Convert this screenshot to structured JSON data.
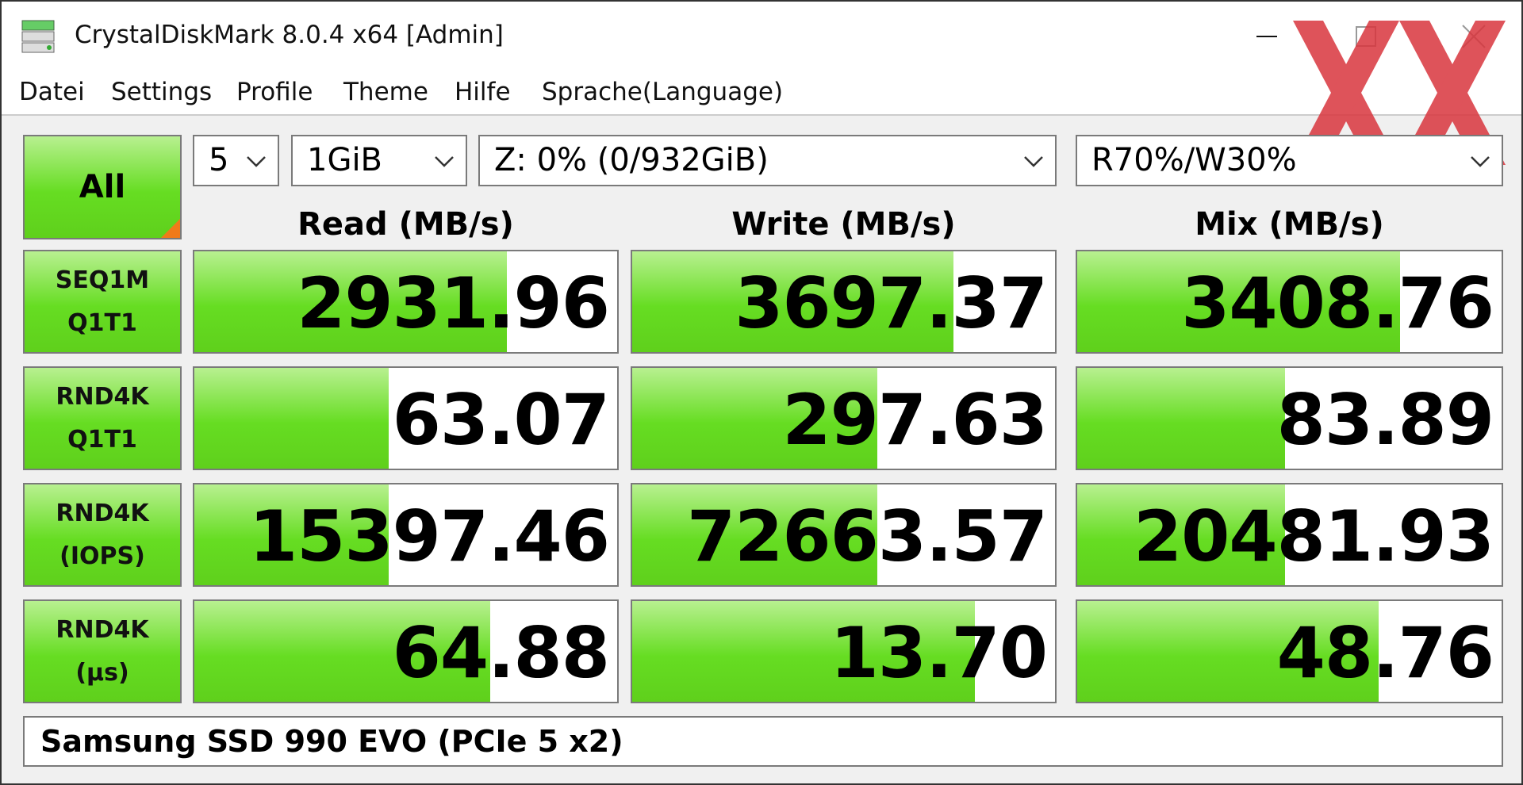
{
  "window": {
    "title": "CrystalDiskMark 8.0.4 x64 [Admin]"
  },
  "menu": [
    "Datei",
    "Settings",
    "Profile",
    "Theme",
    "Hilfe",
    "Sprache(Language)"
  ],
  "controls": {
    "all_button": "All",
    "count": "5",
    "size": "1GiB",
    "drive": "Z: 0% (0/932GiB)",
    "mix": "R70%/W30%"
  },
  "columns": [
    "Read (MB/s)",
    "Write (MB/s)",
    "Mix (MB/s)"
  ],
  "rows": [
    {
      "label": [
        "SEQ1M",
        "Q1T1"
      ],
      "values": [
        "2931.96",
        "3697.37",
        "3408.76"
      ]
    },
    {
      "label": [
        "RND4K",
        "Q1T1"
      ],
      "values": [
        "63.07",
        "297.63",
        "83.89"
      ]
    },
    {
      "label": [
        "RND4K",
        "(IOPS)"
      ],
      "values": [
        "15397.46",
        "72663.57",
        "20481.93"
      ]
    },
    {
      "label": [
        "RND4K",
        "(µs)"
      ],
      "values": [
        "64.88",
        "13.70",
        "48.76"
      ]
    }
  ],
  "footer": "Samsung SSD 990 EVO (PCIe 5 x2)"
}
